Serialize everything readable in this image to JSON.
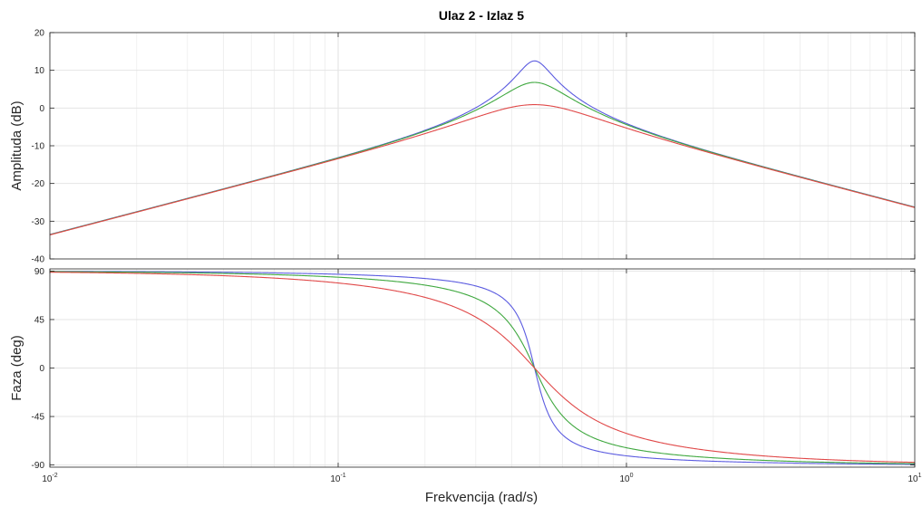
{
  "chart_data": {
    "type": "line",
    "title": "Ulaz 2 - Izlaz 5",
    "xlabel": "Frekvencija  (rad/s)",
    "xscale": "log",
    "xlim": [
      0.01,
      10
    ],
    "x_ticks": [
      {
        "value": 0.01,
        "base": "10",
        "exp": "-2"
      },
      {
        "value": 0.1,
        "base": "10",
        "exp": "-1"
      },
      {
        "value": 1,
        "base": "10",
        "exp": "0"
      },
      {
        "value": 10,
        "base": "10",
        "exp": "1"
      }
    ],
    "grid": true,
    "omega_n": 0.48,
    "series": [
      {
        "color": "#5b5be0",
        "zeta": 0.12
      },
      {
        "color": "#3fa83f",
        "zeta": 0.23
      },
      {
        "color": "#e04848",
        "zeta": 0.45
      }
    ],
    "panels": [
      {
        "quantity": "amplitude",
        "ylabel": "Amplituda (dB)",
        "ylim": [
          -40,
          20
        ],
        "yticks": [
          -40,
          -30,
          -20,
          -10,
          0,
          10,
          20
        ],
        "peaks": [
          12.5,
          6.8,
          0.9
        ]
      },
      {
        "quantity": "phase",
        "ylabel": "Faza (deg)",
        "ylim": [
          -92,
          92
        ],
        "yticks": [
          -90,
          -45,
          0,
          45,
          90
        ],
        "limits": [
          90,
          -90
        ]
      }
    ]
  }
}
